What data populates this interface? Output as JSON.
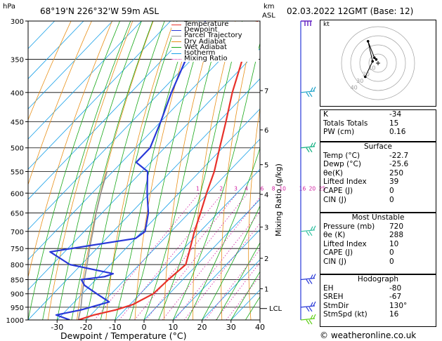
{
  "header": {
    "location": "68°19'N  226°32'W  59m  ASL",
    "datetime": "02.03.2022  12GMT  (Base: 12)"
  },
  "labels": {
    "pressure_unit": "hPa",
    "height_unit_top": "km",
    "height_unit_bottom": "ASL",
    "x_axis": "Dewpoint / Temperature (°C)",
    "mixing_axis": "Mixing Ratio (g/kg)",
    "lcl": "LCL",
    "hodo_unit": "kt",
    "credit": "© weatheronline.co.uk"
  },
  "legend": [
    {
      "label": "Temperature",
      "color": "#e8312a"
    },
    {
      "label": "Dewpoint",
      "color": "#2838d8"
    },
    {
      "label": "Parcel Trajectory",
      "color": "#909090"
    },
    {
      "label": "Dry Adiabat",
      "color": "#e89018"
    },
    {
      "label": "Wet Adiabat",
      "color": "#18a818"
    },
    {
      "label": "Isotherm",
      "color": "#18a0e8"
    },
    {
      "label": "Mixing Ratio",
      "color": "#d01aa0"
    }
  ],
  "chart_data": {
    "type": "skew-t",
    "pressure_levels": [
      300,
      350,
      400,
      450,
      500,
      550,
      600,
      650,
      700,
      750,
      800,
      850,
      900,
      950,
      1000
    ],
    "temperature_ticks": [
      -30,
      -20,
      -10,
      0,
      10,
      20,
      30,
      40
    ],
    "xlim": [
      -40,
      40
    ],
    "height_km_ticks": [
      {
        "km": "7",
        "p": 397
      },
      {
        "km": "6",
        "p": 465
      },
      {
        "km": "5",
        "p": 535
      },
      {
        "km": "4",
        "p": 603
      },
      {
        "km": "3",
        "p": 688
      },
      {
        "km": "2",
        "p": 780
      },
      {
        "km": "1",
        "p": 882
      }
    ],
    "lcl_pressure": 955,
    "mixing_ratio_labels": [
      "1",
      "2",
      "3",
      "4",
      "6",
      "8",
      "10",
      "16",
      "20",
      "25"
    ],
    "temperature_profile": [
      {
        "p": 1000,
        "t": -22.7
      },
      {
        "p": 980,
        "t": -19
      },
      {
        "p": 960,
        "t": -13
      },
      {
        "p": 940,
        "t": -9
      },
      {
        "p": 900,
        "t": -5.5
      },
      {
        "p": 850,
        "t": -5
      },
      {
        "p": 800,
        "t": -4
      },
      {
        "p": 760,
        "t": -7
      },
      {
        "p": 700,
        "t": -12
      },
      {
        "p": 650,
        "t": -16
      },
      {
        "p": 600,
        "t": -20.5
      },
      {
        "p": 550,
        "t": -25
      },
      {
        "p": 500,
        "t": -31
      },
      {
        "p": 450,
        "t": -37.5
      },
      {
        "p": 400,
        "t": -45
      },
      {
        "p": 350,
        "t": -52.5
      },
      {
        "p": 300,
        "t": -60
      }
    ],
    "dewpoint_profile": [
      {
        "p": 1000,
        "t": -25.6
      },
      {
        "p": 980,
        "t": -32
      },
      {
        "p": 960,
        "t": -25
      },
      {
        "p": 930,
        "t": -18
      },
      {
        "p": 900,
        "t": -25
      },
      {
        "p": 870,
        "t": -32
      },
      {
        "p": 850,
        "t": -35
      },
      {
        "p": 840,
        "t": -28
      },
      {
        "p": 830,
        "t": -26
      },
      {
        "p": 800,
        "t": -44
      },
      {
        "p": 760,
        "t": -55
      },
      {
        "p": 720,
        "t": -30
      },
      {
        "p": 700,
        "t": -29
      },
      {
        "p": 650,
        "t": -34
      },
      {
        "p": 600,
        "t": -41
      },
      {
        "p": 550,
        "t": -48
      },
      {
        "p": 530,
        "t": -55
      },
      {
        "p": 500,
        "t": -55
      },
      {
        "p": 450,
        "t": -60
      },
      {
        "p": 400,
        "t": -66
      },
      {
        "p": 350,
        "t": -72
      },
      {
        "p": 300,
        "t": -78
      }
    ],
    "parcel_profile": [
      {
        "p": 1000,
        "t": -22.7
      },
      {
        "p": 955,
        "t": -25.6
      },
      {
        "p": 900,
        "t": -30
      },
      {
        "p": 850,
        "t": -34
      },
      {
        "p": 800,
        "t": -38
      },
      {
        "p": 750,
        "t": -42.5
      },
      {
        "p": 700,
        "t": -47
      },
      {
        "p": 650,
        "t": -52
      },
      {
        "p": 600,
        "t": -57
      },
      {
        "p": 550,
        "t": -62
      }
    ],
    "wind_barbs": [
      {
        "p": 300,
        "color": "#6020c0",
        "type": "pennant"
      },
      {
        "p": 400,
        "color": "#18a0c8",
        "type": "barb"
      },
      {
        "p": 500,
        "color": "#10b080",
        "type": "barb"
      },
      {
        "p": 700,
        "color": "#30c0a0",
        "type": "barb"
      },
      {
        "p": 850,
        "color": "#2838d8",
        "type": "barb"
      },
      {
        "p": 950,
        "color": "#2838d8",
        "type": "barb"
      },
      {
        "p": 1000,
        "color": "#60d018",
        "type": "barb"
      }
    ],
    "hodograph": {
      "rings_kt": [
        10,
        20,
        30,
        40
      ],
      "ring_labels": [
        "10",
        "20",
        "30",
        "40"
      ],
      "wind_points_kt": [
        [
          -2,
          4
        ],
        [
          -4,
          6
        ],
        [
          -11,
          24
        ],
        [
          -6,
          2
        ],
        [
          -14,
          -15
        ]
      ]
    }
  },
  "indices": {
    "basic": [
      {
        "label": "K",
        "value": "-34"
      },
      {
        "label": "Totals Totals",
        "value": "15"
      },
      {
        "label": "PW (cm)",
        "value": "0.16"
      }
    ],
    "surface_title": "Surface",
    "surface": [
      {
        "label": "Temp (°C)",
        "value": "-22.7"
      },
      {
        "label": "Dewp (°C)",
        "value": "-25.6"
      },
      {
        "label": "θe(K)",
        "value": "250"
      },
      {
        "label": "Lifted Index",
        "value": "39"
      },
      {
        "label": "CAPE (J)",
        "value": "0"
      },
      {
        "label": "CIN (J)",
        "value": "0"
      }
    ],
    "unstable_title": "Most Unstable",
    "unstable": [
      {
        "label": "Pressure (mb)",
        "value": "720"
      },
      {
        "label": "θe (K)",
        "value": "288"
      },
      {
        "label": "Lifted Index",
        "value": "10"
      },
      {
        "label": "CAPE (J)",
        "value": "0"
      },
      {
        "label": "CIN (J)",
        "value": "0"
      }
    ],
    "hodograph_title": "Hodograph",
    "hodograph": [
      {
        "label": "EH",
        "value": "-80"
      },
      {
        "label": "SREH",
        "value": "-67"
      },
      {
        "label": "StmDir",
        "value": "130°"
      },
      {
        "label": "StmSpd (kt)",
        "value": "16"
      }
    ]
  }
}
